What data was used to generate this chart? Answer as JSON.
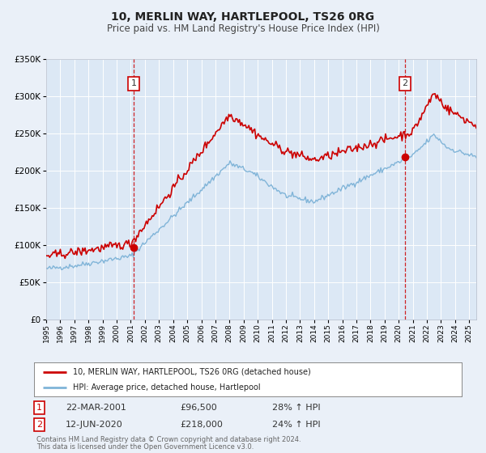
{
  "title": "10, MERLIN WAY, HARTLEPOOL, TS26 0RG",
  "subtitle": "Price paid vs. HM Land Registry's House Price Index (HPI)",
  "legend_label_red": "10, MERLIN WAY, HARTLEPOOL, TS26 0RG (detached house)",
  "legend_label_blue": "HPI: Average price, detached house, Hartlepool",
  "transaction1_label": "1",
  "transaction1_date": "22-MAR-2001",
  "transaction1_price": "£96,500",
  "transaction1_hpi": "28% ↑ HPI",
  "transaction2_label": "2",
  "transaction2_date": "12-JUN-2020",
  "transaction2_price": "£218,000",
  "transaction2_hpi": "24% ↑ HPI",
  "footer1": "Contains HM Land Registry data © Crown copyright and database right 2024.",
  "footer2": "This data is licensed under the Open Government Licence v3.0.",
  "xmin": 1995.0,
  "xmax": 2025.5,
  "ymin": 0,
  "ymax": 350000,
  "vline1_x": 2001.22,
  "vline2_x": 2020.44,
  "dot1_x": 2001.22,
  "dot1_y": 96500,
  "dot2_x": 2020.44,
  "dot2_y": 218000,
  "bg_color": "#eaf0f8",
  "plot_bg": "#dce8f5",
  "red_color": "#cc0000",
  "blue_color": "#80b4d8",
  "vline_color": "#cc0000",
  "grid_color": "#ffffff",
  "yticks": [
    0,
    50000,
    100000,
    150000,
    200000,
    250000,
    300000,
    350000
  ],
  "xticks": [
    1995,
    1996,
    1997,
    1998,
    1999,
    2000,
    2001,
    2002,
    2003,
    2004,
    2005,
    2006,
    2007,
    2008,
    2009,
    2010,
    2011,
    2012,
    2013,
    2014,
    2015,
    2016,
    2017,
    2018,
    2019,
    2020,
    2021,
    2022,
    2023,
    2024,
    2025
  ]
}
